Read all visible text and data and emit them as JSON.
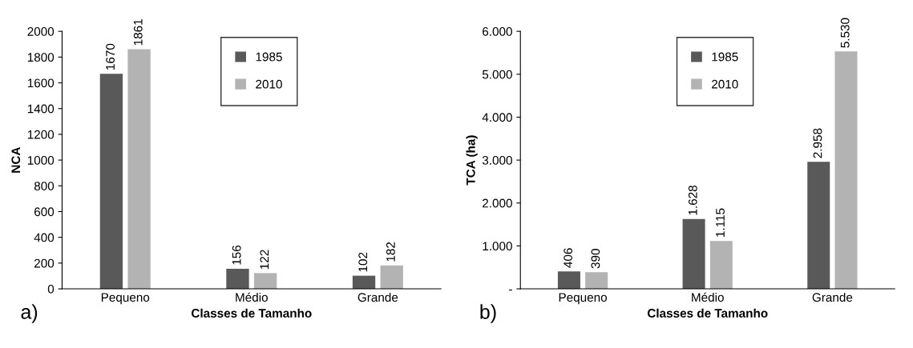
{
  "chart_data": [
    {
      "type": "bar",
      "categories": [
        "Pequeno",
        "Médio",
        "Grande"
      ],
      "xlabel": "Classes de Tamanho",
      "ylabel": "NCA",
      "series": [
        {
          "name": "1985",
          "color": "#595959",
          "values": [
            1670,
            156,
            102
          ],
          "value_labels": [
            "1670",
            "156",
            "102"
          ]
        },
        {
          "name": "2010",
          "color": "#b3b3b3",
          "values": [
            1861,
            122,
            182
          ],
          "value_labels": [
            "1861",
            "122",
            "182"
          ]
        }
      ],
      "ylim": [
        0,
        2000
      ],
      "yticks": [
        0,
        200,
        400,
        600,
        800,
        1000,
        1200,
        1400,
        1600,
        1800,
        2000
      ],
      "legend": "top center",
      "grid": false,
      "annotations": [
        "a)"
      ]
    },
    {
      "type": "bar",
      "categories": [
        "Pequeno",
        "Médio",
        "Grande"
      ],
      "xlabel": "Classes de Tamanho",
      "ylabel": "TCA (ha)",
      "series": [
        {
          "name": "1985",
          "color": "#595959",
          "values": [
            406,
            1628,
            2958
          ],
          "value_labels": [
            "406",
            "1.628",
            "2.958"
          ]
        },
        {
          "name": "2010",
          "color": "#b3b3b3",
          "values": [
            390,
            1115,
            5530
          ],
          "value_labels": [
            "390",
            "1.115",
            "5.530"
          ]
        }
      ],
      "ylim": [
        0,
        6000
      ],
      "yticks": [
        {
          "value": 0,
          "label": "-"
        },
        {
          "value": 1000,
          "label": "1.000"
        },
        {
          "value": 2000,
          "label": "2.000"
        },
        {
          "value": 3000,
          "label": "3.000"
        },
        {
          "value": 4000,
          "label": "4.000"
        },
        {
          "value": 5000,
          "label": "5.000"
        },
        {
          "value": 6000,
          "label": "6.000"
        }
      ],
      "legend": "top center",
      "grid": false,
      "annotations": [
        "b)"
      ]
    }
  ]
}
